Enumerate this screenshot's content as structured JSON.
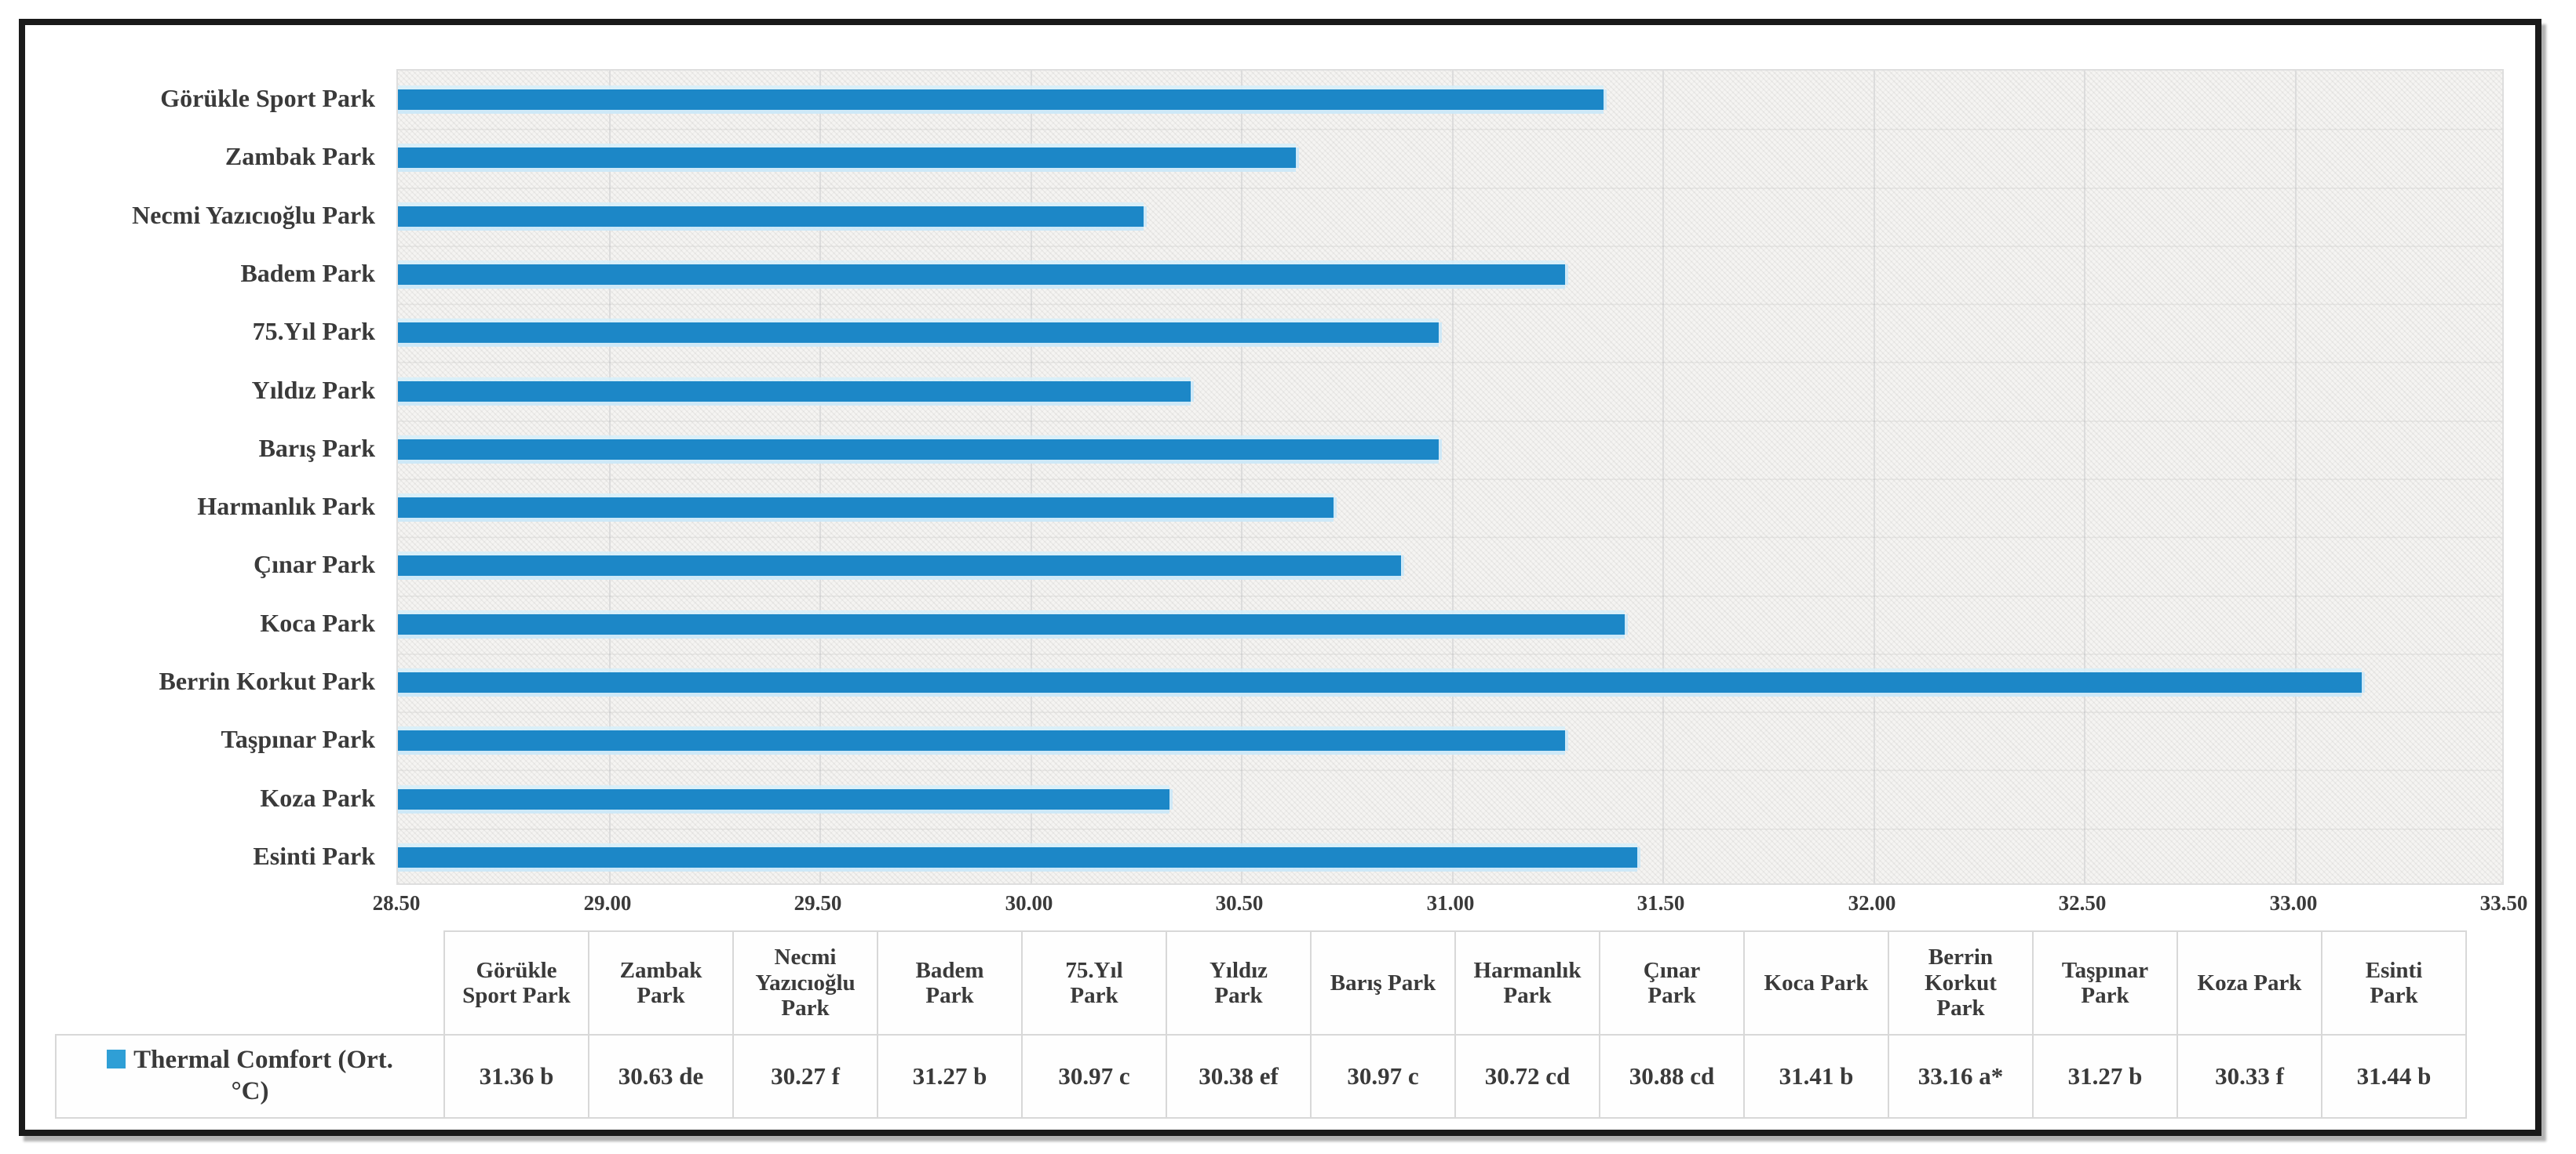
{
  "chart_data": {
    "type": "bar",
    "orientation": "horizontal",
    "title": "",
    "categories": [
      "Görükle Sport Park",
      "Zambak Park",
      "Necmi Yazıcıoğlu Park",
      "Badem Park",
      "75.Yıl Park",
      "Yıldız Park",
      "Barış Park",
      "Harmanlık Park",
      "Çınar Park",
      "Koca Park",
      "Berrin Korkut Park",
      "Taşpınar Park",
      "Koza Park",
      "Esinti Park"
    ],
    "series": [
      {
        "name": "Thermal Comfort (Ort. °C)",
        "values": [
          31.36,
          30.63,
          30.27,
          31.27,
          30.97,
          30.38,
          30.97,
          30.72,
          30.88,
          31.41,
          33.16,
          31.27,
          30.33,
          31.44
        ]
      }
    ],
    "xlim": [
      28.5,
      33.5
    ],
    "x_tick_step": 0.5,
    "x_tick_labels": [
      "28.50",
      "29.00",
      "29.50",
      "30.00",
      "30.50",
      "31.00",
      "31.50",
      "32.00",
      "32.50",
      "33.00",
      "33.50"
    ],
    "grid": true,
    "legend_position": "bottom-left-table-row",
    "bar_color": "#1c87c7",
    "plot_background": "#f5f4f2"
  },
  "table": {
    "legend_display": "Thermal Comfort (Ort.\n°C)",
    "column_headers_display": [
      "Görükle\nSport Park",
      "Zambak\nPark",
      "Necmi\nYazıcıoğlu\nPark",
      "Badem\nPark",
      "75.Yıl\nPark",
      "Yıldız\nPark",
      "Barış Park",
      "Harmanlık\nPark",
      "Çınar\nPark",
      "Koca Park",
      "Berrin\nKorkut\nPark",
      "Taşpınar\nPark",
      "Koza Park",
      "Esinti\nPark"
    ],
    "values_display": [
      "31.36 b",
      "30.63 de",
      "30.27 f",
      "31.27 b",
      "30.97 c",
      "30.38 ef",
      "30.97 c",
      "30.72 cd",
      "30.88 cd",
      "31.41 b",
      "33.16 a*",
      "31.27 b",
      "30.33 f",
      "31.44 b"
    ]
  },
  "colors": {
    "bar": "#1c87c7",
    "legend_swatch": "#2f9fd6",
    "text": "#3a3a3a",
    "gridline": "#dcdcdc",
    "table_border": "#d8d8d8",
    "frame": "#1a1a1a"
  }
}
